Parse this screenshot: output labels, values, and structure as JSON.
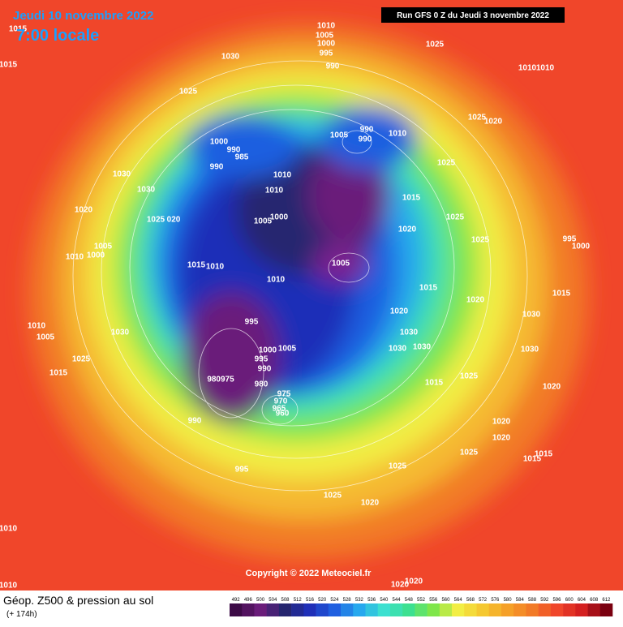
{
  "header": {
    "date": "Jeudi 10 novembre 2022",
    "time": "7:00 locale",
    "run": "Run GFS 0 Z du Jeudi 3 novembre 2022"
  },
  "copyright": "Copyright © 2022 Meteociel.fr",
  "footer": {
    "title": "Géop. Z500 & pression au sol",
    "lead": "(+ 174h)"
  },
  "scale": {
    "labels": [
      "492",
      "496",
      "500",
      "504",
      "508",
      "512",
      "516",
      "520",
      "524",
      "528",
      "532",
      "536",
      "540",
      "544",
      "548",
      "552",
      "556",
      "560",
      "564",
      "568",
      "572",
      "576",
      "580",
      "584",
      "588",
      "592",
      "596",
      "600",
      "604",
      "608",
      "612"
    ]
  },
  "isobars": [
    "1015",
    "1015",
    "1030",
    "1010",
    "1005",
    "1000",
    "995",
    "990",
    "1025",
    "1010",
    "1010",
    "1025",
    "1000",
    "990",
    "985",
    "990",
    "1005",
    "990",
    "990",
    "1010",
    "1030",
    "1030",
    "1010",
    "1010",
    "1025",
    "1025",
    "1020",
    "1015",
    "1020",
    "1025",
    "020",
    "1005",
    "1000",
    "1025",
    "1020",
    "1025",
    "995",
    "1000",
    "1005",
    "1010",
    "1000",
    "1015",
    "1010",
    "1005",
    "1010",
    "1015",
    "1020",
    "1015",
    "1030",
    "1020",
    "1010",
    "1005",
    "1030",
    "995",
    "1025",
    "1015",
    "1000",
    "1005",
    "995",
    "990",
    "980",
    "980975",
    "975",
    "970",
    "965",
    "960",
    "990",
    "1030",
    "1030",
    "1030",
    "1030",
    "1015",
    "1025",
    "1020",
    "1020",
    "1020",
    "995",
    "1025",
    "1025",
    "1015",
    "1015",
    "1025",
    "1020",
    "1010",
    "1010",
    "1020",
    "1020"
  ]
}
